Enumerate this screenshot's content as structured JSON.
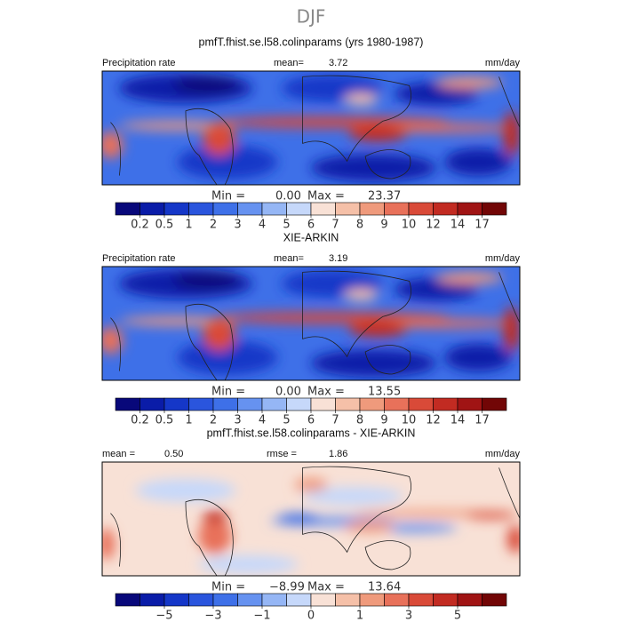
{
  "title": "DJF",
  "panels": [
    {
      "title": "pmfT.fhist.se.l58.colinparams (yrs 1980-1987)",
      "left_label": "Precipitation rate",
      "stat_label": "mean=",
      "stat": "3.72",
      "units": "mm/day",
      "min_label": "Min =",
      "min": "0.00",
      "max_label": "Max =",
      "max": "23.37",
      "colorbar": {
        "colors": [
          "#08087a",
          "#0a1ca8",
          "#1537c8",
          "#2a55dd",
          "#3e70e8",
          "#6692f0",
          "#95b6f5",
          "#c6d8fa",
          "#f8e1d6",
          "#f5c0a8",
          "#ef9a7c",
          "#e8715a",
          "#d94a38",
          "#c22b22",
          "#a01414",
          "#720606"
        ],
        "ticks": [
          0.2,
          0.5,
          1,
          2,
          3,
          4,
          5,
          6,
          7,
          8,
          9,
          10,
          12,
          14,
          17
        ]
      }
    },
    {
      "title": "XIE-ARKIN",
      "left_label": "Precipitation rate",
      "stat_label": "mean=",
      "stat": "3.19",
      "units": "mm/day",
      "min_label": "Min =",
      "min": "0.00",
      "max_label": "Max =",
      "max": "13.55",
      "colorbar": {
        "colors": [
          "#08087a",
          "#0a1ca8",
          "#1537c8",
          "#2a55dd",
          "#3e70e8",
          "#6692f0",
          "#95b6f5",
          "#c6d8fa",
          "#f8e1d6",
          "#f5c0a8",
          "#ef9a7c",
          "#e8715a",
          "#d94a38",
          "#c22b22",
          "#a01414",
          "#720606"
        ],
        "ticks": [
          0.2,
          0.5,
          1,
          2,
          3,
          4,
          5,
          6,
          7,
          8,
          9,
          10,
          12,
          14,
          17
        ]
      }
    },
    {
      "title": "pmfT.fhist.se.l58.colinparams - XIE-ARKIN",
      "left_label": "mean =",
      "left_value": "0.50",
      "stat_label": "rmse =",
      "stat": "1.86",
      "units": "mm/day",
      "min_label": "Min =",
      "min": "−8.99",
      "max_label": "Max =",
      "max": "13.64",
      "colorbar": {
        "colors": [
          "#08087a",
          "#0a1ca8",
          "#1537c8",
          "#2a55dd",
          "#3e70e8",
          "#6692f0",
          "#95b6f5",
          "#c6d8fa",
          "#f8e1d6",
          "#f5c0a8",
          "#ef9a7c",
          "#e8715a",
          "#d94a38",
          "#c22b22",
          "#a01414",
          "#720606"
        ],
        "ticks": [
          null,
          {
            "value": -5,
            "label": "−5"
          },
          null,
          {
            "value": -3,
            "label": "−3"
          },
          null,
          {
            "value": -1,
            "label": "−1"
          },
          null,
          0,
          null,
          1,
          null,
          3,
          null,
          5,
          null
        ]
      }
    }
  ]
}
